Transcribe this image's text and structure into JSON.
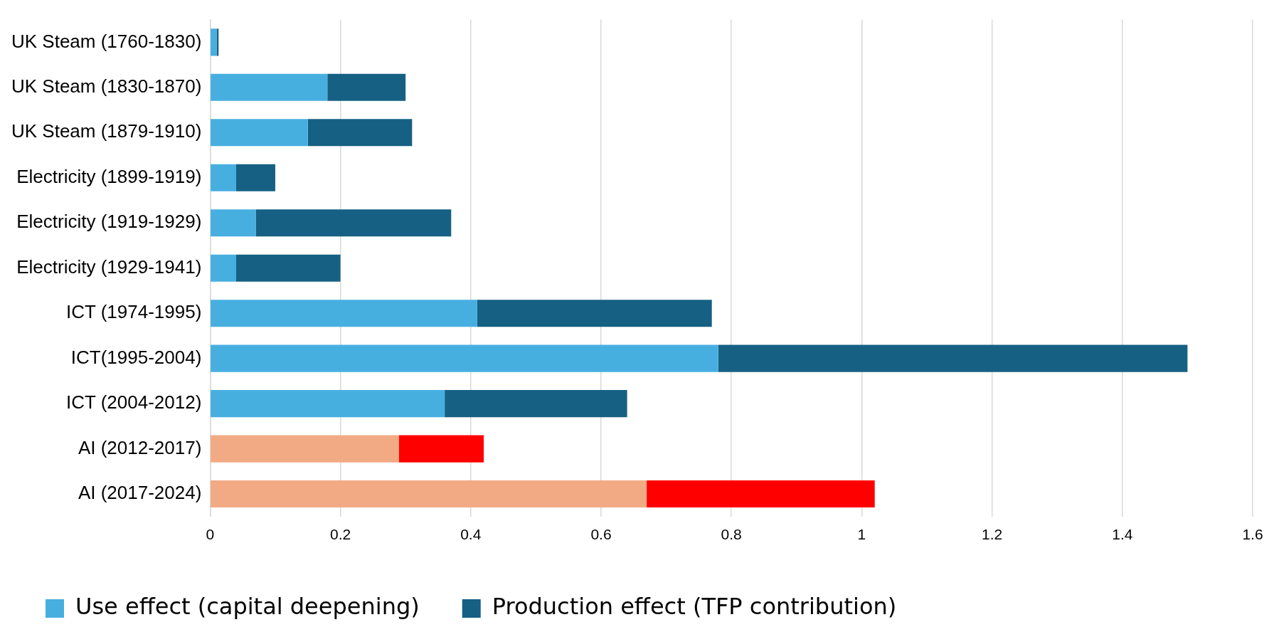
{
  "chart_data": {
    "type": "bar",
    "orientation": "horizontal",
    "stacked": true,
    "categories": [
      "UK Steam (1760-1830)",
      "UK Steam (1830-1870)",
      "UK Steam (1879-1910)",
      "Electricity (1899-1919)",
      "Electricity (1919-1929)",
      "Electricity (1929-1941)",
      "ICT (1974-1995)",
      "ICT(1995-2004)",
      "ICT (2004-2012)",
      "AI (2012-2017)",
      "AI (2017-2024)"
    ],
    "series": [
      {
        "name": "Use effect (capital deepening)",
        "color": "#47afe0",
        "colors": [
          "#47afe0",
          "#47afe0",
          "#47afe0",
          "#47afe0",
          "#47afe0",
          "#47afe0",
          "#47afe0",
          "#47afe0",
          "#47afe0",
          "#f2aa84",
          "#f2aa84"
        ],
        "values": [
          0.01,
          0.18,
          0.15,
          0.04,
          0.07,
          0.04,
          0.41,
          0.78,
          0.36,
          0.29,
          0.67
        ]
      },
      {
        "name": "Production effect (TFP contribution)",
        "color": "#166083",
        "colors": [
          "#166083",
          "#166083",
          "#166083",
          "#166083",
          "#166083",
          "#166083",
          "#166083",
          "#166083",
          "#166083",
          "#ff0000",
          "#ff0000"
        ],
        "values": [
          0.003,
          0.12,
          0.16,
          0.06,
          0.3,
          0.16,
          0.36,
          0.72,
          0.28,
          0.13,
          0.35
        ]
      }
    ],
    "xlim": [
      0,
      1.6
    ],
    "xticks": [
      0,
      0.2,
      0.4,
      0.6,
      0.8,
      1,
      1.2,
      1.4,
      1.6
    ],
    "grid": "x",
    "legend": "bottom"
  }
}
